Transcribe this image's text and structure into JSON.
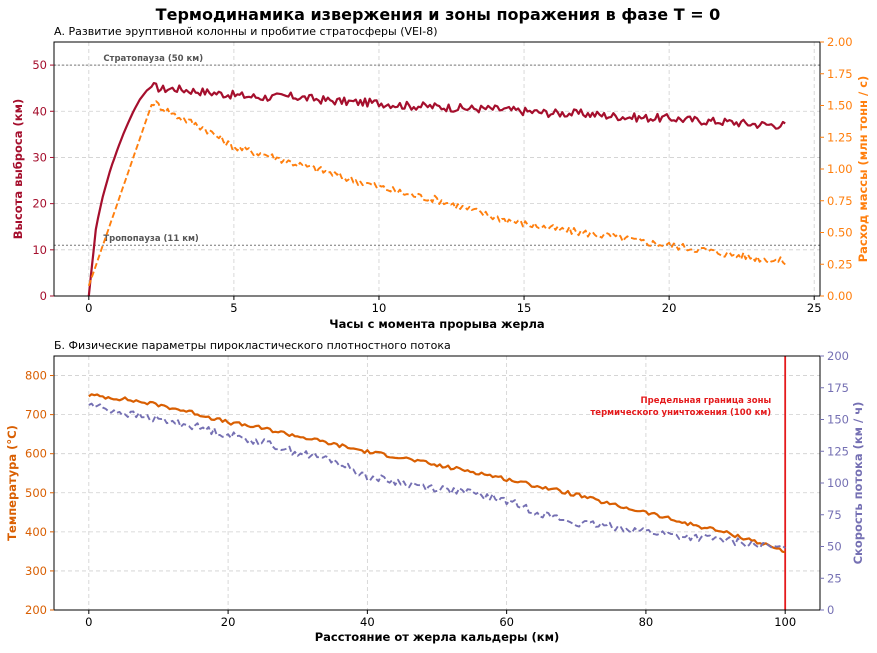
{
  "figure_title": "Термодинамика извержения и зоны поражения в фазе T = 0",
  "chart_data": [
    {
      "type": "line",
      "panel_title": "А. Развитие эруптивной колонны и пробитие стратосферы (VEI-8)",
      "xlabel": "Часы с момента прорыва жерла",
      "ylabel_left": "Высота выброса (км)",
      "ylabel_right": "Расход массы (млн тонн / с)",
      "xlim": [
        -1.2,
        25.2
      ],
      "ylim_left": [
        0,
        55
      ],
      "ylim_right": [
        0,
        2.0
      ],
      "xticks": [
        0,
        5,
        10,
        15,
        20,
        25
      ],
      "yticks_left": [
        0,
        10,
        20,
        30,
        40,
        50
      ],
      "yticks_right": [
        "0.00",
        "0.25",
        "0.50",
        "0.75",
        "1.00",
        "1.25",
        "1.50",
        "1.75",
        "2.00"
      ],
      "grid": true,
      "hlines": [
        {
          "y": 50,
          "label": "Стратопауза (50 км)"
        },
        {
          "y": 11,
          "label": "Тропопауза (11 км)"
        }
      ],
      "series": [
        {
          "axis": "left",
          "color": "#a50f2d",
          "style": "solid",
          "x": [
            0,
            0.25,
            0.5,
            0.75,
            1,
            1.25,
            1.5,
            1.75,
            2,
            2.2,
            2.5,
            3,
            3.5,
            4,
            5,
            6,
            7,
            8,
            9,
            10,
            11,
            12,
            13,
            14,
            15,
            16,
            17,
            18,
            19,
            20,
            21,
            22,
            23,
            24
          ],
          "y": [
            0,
            15,
            22,
            27.5,
            32,
            36,
            39.5,
            42.5,
            44.5,
            45.5,
            44.8,
            44.9,
            44.5,
            44.2,
            43.5,
            43.0,
            43.2,
            42.5,
            42.0,
            41.8,
            41.2,
            41.0,
            40.6,
            40.5,
            40.0,
            39.6,
            39.5,
            39.0,
            38.6,
            38.5,
            38.0,
            37.7,
            37.2,
            37.0
          ]
        },
        {
          "axis": "right",
          "color": "#ff7f0e",
          "style": "dashed",
          "x": [
            0,
            2.2,
            3,
            4,
            5,
            6,
            7,
            8,
            9,
            10,
            11,
            12,
            13,
            14,
            15,
            16,
            17,
            18,
            19,
            20,
            21,
            22,
            23,
            24
          ],
          "y": [
            0.08,
            1.53,
            1.42,
            1.32,
            1.17,
            1.12,
            1.05,
            0.99,
            0.92,
            0.86,
            0.8,
            0.76,
            0.69,
            0.62,
            0.57,
            0.53,
            0.5,
            0.47,
            0.43,
            0.4,
            0.37,
            0.33,
            0.3,
            0.27
          ]
        }
      ]
    },
    {
      "type": "line",
      "panel_title": "Б. Физические параметры пирокластического плотностного потока",
      "xlabel": "Расстояние от жерла кальдеры (км)",
      "ylabel_left": "Температура (°C)",
      "ylabel_right": "Скорость потока (км / ч)",
      "xlim": [
        -5,
        105
      ],
      "ylim_left": [
        200,
        850
      ],
      "ylim_right": [
        0,
        200
      ],
      "xticks": [
        0,
        20,
        40,
        60,
        80,
        100
      ],
      "yticks_left": [
        200,
        300,
        400,
        500,
        600,
        700,
        800
      ],
      "yticks_right": [
        0,
        25,
        50,
        75,
        100,
        125,
        150,
        175,
        200
      ],
      "grid": true,
      "vline": {
        "x": 100,
        "label_line1": "Предельная граница зоны",
        "label_line2": "термического уничтожения (100 км)"
      },
      "series": [
        {
          "axis": "left",
          "color": "#d95f02",
          "style": "solid",
          "x": [
            0,
            5,
            10,
            15,
            20,
            25,
            30,
            35,
            40,
            45,
            50,
            55,
            60,
            65,
            70,
            75,
            80,
            85,
            90,
            95,
            100
          ],
          "y": [
            750,
            740,
            725,
            705,
            680,
            665,
            645,
            625,
            605,
            590,
            570,
            555,
            535,
            515,
            495,
            470,
            450,
            425,
            405,
            380,
            350
          ]
        },
        {
          "axis": "right",
          "color": "#7570b3",
          "style": "dashed",
          "x": [
            0,
            5,
            10,
            15,
            20,
            25,
            30,
            35,
            40,
            45,
            50,
            55,
            60,
            65,
            70,
            75,
            80,
            85,
            90,
            95,
            100
          ],
          "y": [
            162,
            155,
            150,
            145,
            138,
            132,
            124,
            118,
            105,
            100,
            96,
            92,
            86,
            76,
            68,
            66,
            62,
            58,
            56,
            52,
            48
          ]
        }
      ]
    }
  ]
}
